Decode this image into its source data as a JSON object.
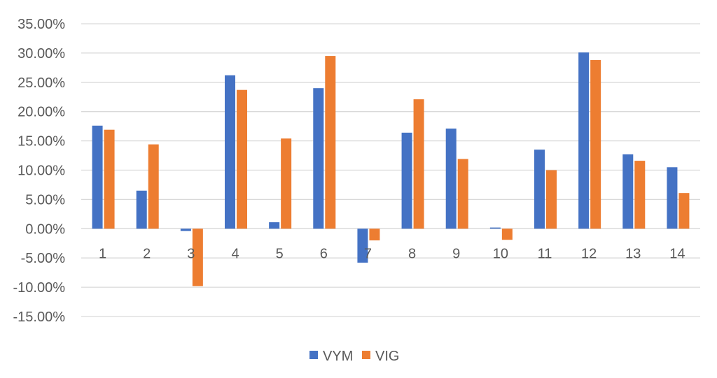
{
  "chart_data": {
    "type": "bar",
    "categories": [
      "1",
      "2",
      "3",
      "4",
      "5",
      "6",
      "7",
      "8",
      "9",
      "10",
      "11",
      "12",
      "13",
      "14"
    ],
    "series": [
      {
        "name": "VYM",
        "color": "#4472c4",
        "values": [
          17.6,
          6.5,
          -0.4,
          26.2,
          1.1,
          24.0,
          -5.8,
          16.4,
          17.1,
          0.2,
          13.5,
          30.1,
          12.7,
          10.5
        ]
      },
      {
        "name": "VIG",
        "color": "#ed7d31",
        "values": [
          16.9,
          14.4,
          -9.8,
          23.7,
          15.4,
          29.5,
          -2.0,
          22.1,
          11.9,
          -1.9,
          10.0,
          28.8,
          11.6,
          6.1
        ]
      }
    ],
    "ylim": [
      -15,
      35
    ],
    "yticks": [
      35,
      30,
      25,
      20,
      15,
      10,
      5,
      0,
      -5,
      -10,
      -15
    ],
    "ytick_labels": [
      "35.00%",
      "30.00%",
      "25.00%",
      "20.00%",
      "15.00%",
      "10.00%",
      "5.00%",
      "0.00%",
      "-5.00%",
      "-10.00%",
      "-15.00%"
    ],
    "grid": true,
    "legend_position": "bottom",
    "title": "",
    "xlabel": "",
    "ylabel": ""
  }
}
